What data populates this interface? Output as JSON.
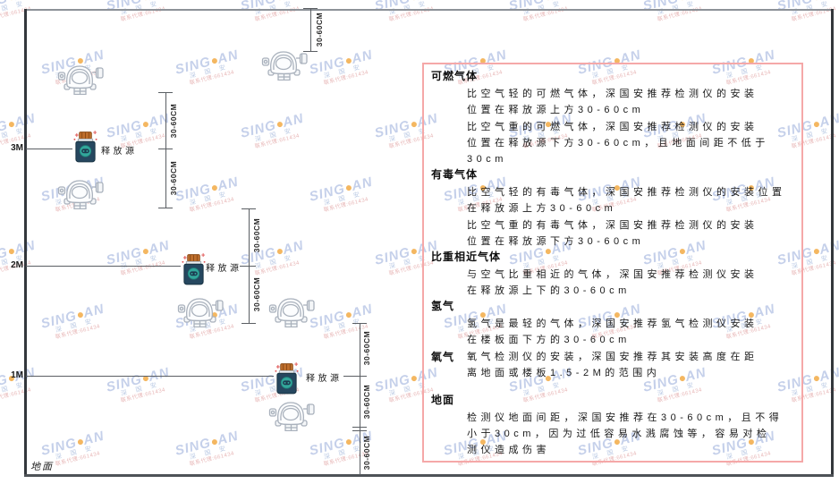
{
  "diagram": {
    "levels": [
      {
        "label": "3M"
      },
      {
        "label": "2M"
      },
      {
        "label": "1M"
      }
    ],
    "ground_label": "地面",
    "source_label": "释放源",
    "dim_label": "30-60CM",
    "icons": {
      "detector": "gas-detector-icon",
      "source": "release-source-icon"
    },
    "colors": {
      "line": "#5a5e63",
      "wall": "#33373c",
      "detector_stroke": "#a9b1bc",
      "source_body": "#26475f",
      "source_cap": "#bf6f2d",
      "source_logo": "#33a79c",
      "sparkle": "#e05555"
    }
  },
  "panel": {
    "border_color": "#f5a8a8",
    "sections": [
      {
        "heading": "可燃气体",
        "paras": [
          [
            "比空气轻的可燃气体，深国安推荐检测仪的安装",
            "位置在释放源上方30-60cm"
          ],
          [
            "比空气重的可燃气体，深国安推荐检测仪的安装",
            "位置在释放源下方30-60cm，且地面间距不低于",
            "30cm"
          ]
        ]
      },
      {
        "heading": "有毒气体",
        "paras": [
          [
            "比空气轻的有毒气体，深国安推荐检测仪的安装位置",
            "在释放源上方30-60cm"
          ],
          [
            "比空气重的有毒气体，深国安推荐检测仪的安装",
            "位置在释放源下方30-60cm"
          ]
        ]
      },
      {
        "heading": "比重相近气体",
        "paras": [
          [
            "与空气比重相近的气体，深国安推荐检测仪安装",
            "在释放源上下的30-60cm"
          ]
        ]
      },
      {
        "heading": "氢气",
        "paras": [
          [
            "氢气是最轻的气体，深国安推荐氢气检测仪安装",
            "在楼板面下方的30-60cm"
          ]
        ]
      },
      {
        "heading": "氧气",
        "inline": true,
        "paras": [
          [
            "氧气检测仪的安装，深国安推荐其安装高度在距",
            "离地面或楼板1.5-2M的范围内"
          ]
        ]
      },
      {
        "heading": "地面",
        "paras": [
          [
            "检测仪地面间距，深国安推荐在30-60cm，且不得",
            "小于30cm，因为过低容易水溅腐蚀等，容易对检",
            "测仪造成伤害"
          ]
        ]
      }
    ]
  },
  "watermark": {
    "brand_left": "SING",
    "brand_right": "AN",
    "sub": "深 国 安",
    "contact": "联系代理:661434",
    "brand_color": "#b7c5e6",
    "dot_color": "#f2a63a"
  }
}
